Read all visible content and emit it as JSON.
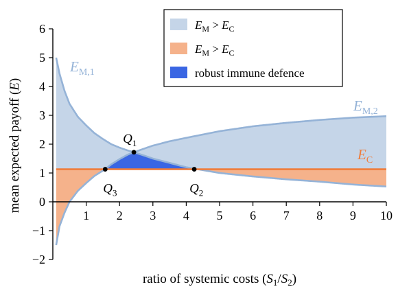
{
  "chart_data": {
    "type": "area",
    "xlabel": {
      "prefix": "ratio of systemic costs (",
      "var1": "S",
      "sub1": "1",
      "slash": "/",
      "var2": "S",
      "sub2": "2",
      "suffix": ")"
    },
    "ylabel": {
      "prefix": "mean expected payoff (",
      "var": "E",
      "suffix": ")"
    },
    "xlim": [
      0,
      10
    ],
    "ylim": [
      -2,
      6
    ],
    "x_ticks": [
      1,
      2,
      3,
      4,
      5,
      6,
      7,
      8,
      9,
      10
    ],
    "y_ticks": [
      -2,
      -1,
      0,
      1,
      2,
      3,
      4,
      5,
      6
    ],
    "x_tick_labels": [
      "1",
      "2",
      "3",
      "4",
      "5",
      "6",
      "7",
      "8",
      "9",
      "10"
    ],
    "y_tick_labels": [
      "−2",
      "−1",
      "0",
      "1",
      "2",
      "3",
      "4",
      "5",
      "6"
    ],
    "grid": false,
    "legend_position": "top-center",
    "series": [
      {
        "key": "EM1",
        "label_main": "E",
        "label_sub": "M,1",
        "color": "#95b3d7",
        "x": [
          0.1,
          0.2,
          0.35,
          0.5,
          0.75,
          1.0,
          1.25,
          1.5,
          1.75,
          2.0,
          2.25,
          2.43,
          2.75,
          3.0,
          3.5,
          4.0,
          4.24,
          5.0,
          6.0,
          7.0,
          8.0,
          9.0,
          10.0
        ],
        "y": [
          5.0,
          4.45,
          3.85,
          3.4,
          2.95,
          2.65,
          2.38,
          2.18,
          2.0,
          1.88,
          1.78,
          1.72,
          1.6,
          1.5,
          1.35,
          1.2,
          1.15,
          1.0,
          0.88,
          0.78,
          0.7,
          0.6,
          0.53
        ]
      },
      {
        "key": "EM2",
        "label_main": "E",
        "label_sub": "M,2",
        "color": "#95b3d7",
        "x": [
          0.1,
          0.2,
          0.35,
          0.5,
          0.75,
          1.0,
          1.25,
          1.5,
          1.57,
          1.75,
          2.0,
          2.25,
          2.43,
          2.75,
          3.0,
          3.5,
          4.0,
          5.0,
          6.0,
          7.0,
          8.0,
          9.0,
          10.0
        ],
        "y": [
          -1.5,
          -0.85,
          -0.38,
          0.0,
          0.38,
          0.65,
          0.9,
          1.08,
          1.13,
          1.3,
          1.48,
          1.64,
          1.72,
          1.85,
          1.95,
          2.1,
          2.22,
          2.45,
          2.62,
          2.74,
          2.84,
          2.92,
          2.97
        ]
      },
      {
        "key": "EC",
        "label_main": "E",
        "label_sub": "C",
        "color": "#ef7d3c",
        "x": [
          0.1,
          10.0
        ],
        "y": [
          1.13,
          1.13
        ]
      }
    ],
    "points": [
      {
        "name": "Q",
        "sub": "1",
        "x": 2.43,
        "y": 1.72
      },
      {
        "name": "Q",
        "sub": "2",
        "x": 4.24,
        "y": 1.13
      },
      {
        "name": "Q",
        "sub": "3",
        "x": 1.57,
        "y": 1.13
      }
    ],
    "legend": [
      {
        "color": "#c5d5e8",
        "text_main": "E",
        "text_sub1": "M",
        "op": " > ",
        "text_main2": "E",
        "text_sub2": "C"
      },
      {
        "color": "#f5b28b",
        "text_main": "E",
        "text_sub1": "M",
        "op": " > ",
        "text_main2": "E",
        "text_sub2": "C"
      },
      {
        "color": "#3a66e3",
        "text": "robust immune defence"
      }
    ],
    "colors": {
      "blue_fill": "#c5d5e8",
      "orange_fill": "#f5b28b",
      "robust_fill": "#3a66e3",
      "em_line": "#95b3d7",
      "ec_line": "#ef7d3c"
    }
  }
}
